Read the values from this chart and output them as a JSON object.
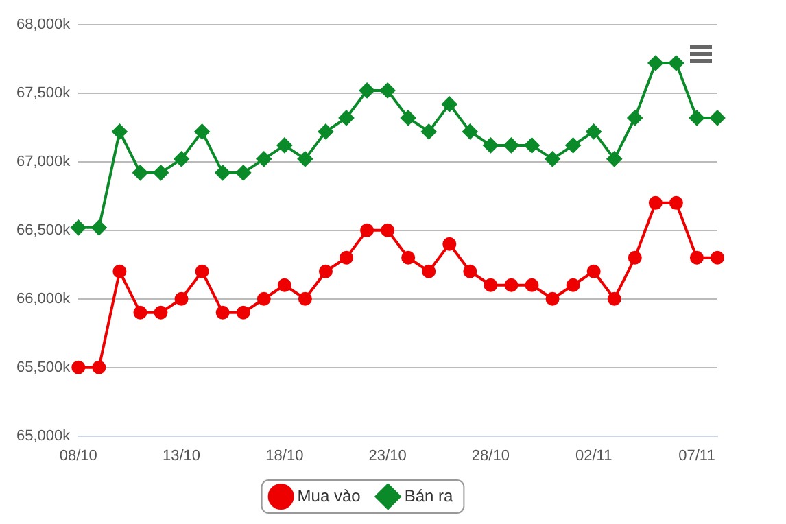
{
  "chart_data": {
    "type": "line",
    "categories": [
      "08/10",
      null,
      null,
      null,
      null,
      "13/10",
      null,
      null,
      null,
      null,
      "18/10",
      null,
      null,
      null,
      null,
      "23/10",
      null,
      null,
      null,
      null,
      "28/10",
      null,
      null,
      null,
      null,
      "02/11",
      null,
      null,
      null,
      null,
      "07/11",
      null
    ],
    "series": [
      {
        "name": "Mua vào",
        "color": "#ee0000",
        "marker": "circle",
        "values": [
          65500,
          65500,
          66200,
          65900,
          65900,
          66000,
          66200,
          65900,
          65900,
          66000,
          66100,
          66000,
          66200,
          66300,
          66500,
          66500,
          66300,
          66200,
          66400,
          66200,
          66100,
          66100,
          66100,
          66000,
          66100,
          66200,
          66000,
          66300,
          66700,
          66700,
          66300,
          66300
        ]
      },
      {
        "name": "Bán ra",
        "color": "#0b8a2a",
        "marker": "diamond",
        "values": [
          66520,
          66520,
          67220,
          66920,
          66920,
          67020,
          67220,
          66920,
          66920,
          67020,
          67120,
          67020,
          67220,
          67320,
          67520,
          67520,
          67320,
          67220,
          67420,
          67220,
          67120,
          67120,
          67120,
          67020,
          67120,
          67220,
          67020,
          67320,
          67720,
          67720,
          67320,
          67320
        ]
      }
    ],
    "ylim": [
      65000,
      68000
    ],
    "yticks": [
      {
        "value": 65000,
        "label": "65,000k"
      },
      {
        "value": 65500,
        "label": "65,500k"
      },
      {
        "value": 66000,
        "label": "66,000k"
      },
      {
        "value": 66500,
        "label": "66,500k"
      },
      {
        "value": 67000,
        "label": "67,000k"
      },
      {
        "value": 67500,
        "label": "67,500k"
      },
      {
        "value": 68000,
        "label": "68,000k"
      }
    ],
    "grid": "y",
    "legend": "bottom",
    "line_style": "solid"
  }
}
